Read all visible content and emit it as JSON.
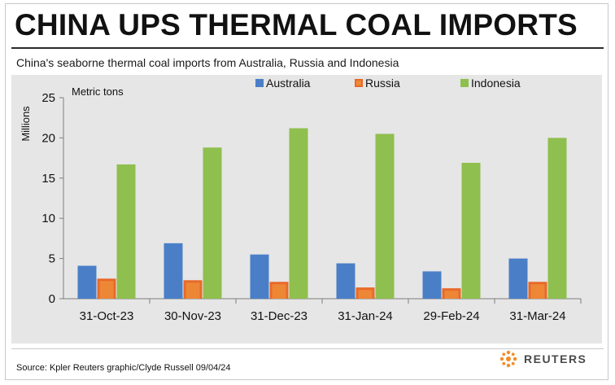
{
  "header": {
    "title": "CHINA UPS THERMAL COAL IMPORTS",
    "subtitle": "China's seaborne thermal coal imports from Australia, Russia and Indonesia"
  },
  "footer": {
    "source": "Source: Kpler    Reuters graphic/Clyde Russell 09/04/24",
    "logo_text": "REUTERS"
  },
  "colors": {
    "australia": "#4a7fc8",
    "russia": "#e8692a",
    "russia_inner": "#f0a040",
    "indonesia": "#8fbf4e",
    "panel": "#e6e6e6",
    "logo_orange": "#f28c28"
  },
  "chart_data": {
    "type": "bar",
    "title": "CHINA UPS THERMAL COAL IMPORTS",
    "subtitle": "China's seaborne thermal coal imports from Australia, Russia and Indonesia",
    "unit_label": "Metric tons",
    "ylabel": "Millions",
    "xlabel": "",
    "ylim": [
      0,
      25
    ],
    "yticks": [
      0,
      5,
      10,
      15,
      20,
      25
    ],
    "grid": false,
    "legend_position": "top-center",
    "categories": [
      "31-Oct-23",
      "30-Nov-23",
      "31-Dec-23",
      "31-Jan-24",
      "29-Feb-24",
      "31-Mar-24"
    ],
    "series": [
      {
        "name": "Australia",
        "values": [
          4.1,
          6.9,
          5.5,
          4.4,
          3.4,
          5.0
        ]
      },
      {
        "name": "Russia",
        "values": [
          2.5,
          2.3,
          2.1,
          1.4,
          1.3,
          2.1
        ]
      },
      {
        "name": "Indonesia",
        "values": [
          16.7,
          18.8,
          21.2,
          20.5,
          16.9,
          20.0
        ]
      }
    ]
  }
}
